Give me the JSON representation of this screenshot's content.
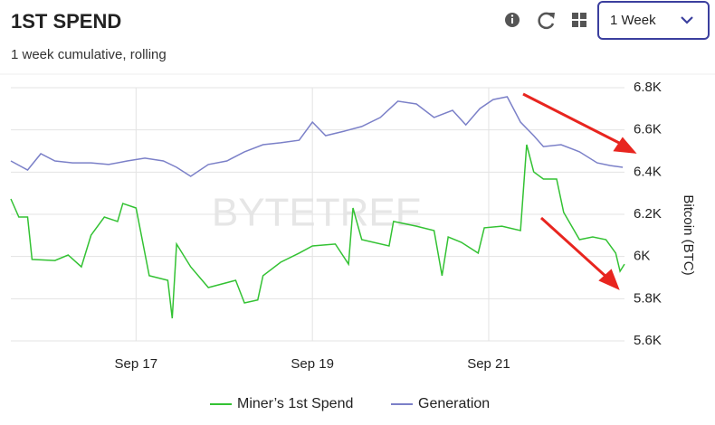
{
  "header": {
    "title": "1ST SPEND",
    "subtitle": "1 week cumulative, rolling",
    "range_select": "1 Week"
  },
  "watermark": "BYTETREE",
  "chart_data": {
    "type": "line",
    "y_label": "Bitcoin (BTC)",
    "xlim": [
      15.58,
      22.54
    ],
    "xticks": [
      {
        "value": 17,
        "label": "Sep 17"
      },
      {
        "value": 19,
        "label": "Sep 19"
      },
      {
        "value": 21,
        "label": "Sep 21"
      }
    ],
    "ylim": [
      5600,
      6800
    ],
    "yticks": [
      {
        "value": 5600,
        "label": "5.6K"
      },
      {
        "value": 5800,
        "label": "5.8K"
      },
      {
        "value": 6000,
        "label": "6K"
      },
      {
        "value": 6200,
        "label": "6.2K"
      },
      {
        "value": 6400,
        "label": "6.4K"
      },
      {
        "value": 6600,
        "label": "6.6K"
      },
      {
        "value": 6800,
        "label": "6.8K"
      }
    ],
    "grid": true,
    "series": [
      {
        "name": "Miner’s 1st Spend",
        "color": "#33c233",
        "x": [
          15.58,
          15.67,
          15.77,
          15.82,
          16.08,
          16.23,
          16.38,
          16.49,
          16.64,
          16.79,
          16.85,
          17.0,
          17.05,
          17.15,
          17.36,
          17.41,
          17.46,
          17.62,
          17.82,
          18.13,
          18.23,
          18.38,
          18.44,
          18.64,
          18.85,
          19.0,
          19.26,
          19.41,
          19.46,
          19.56,
          19.87,
          19.92,
          20.18,
          20.38,
          20.47,
          20.54,
          20.69,
          20.88,
          20.95,
          21.15,
          21.36,
          21.43,
          21.51,
          21.62,
          21.77,
          21.85,
          22.03,
          22.18,
          22.33,
          22.44,
          22.49,
          22.54
        ],
        "values": [
          6273,
          6187,
          6187,
          5986,
          5981,
          6007,
          5951,
          6101,
          6187,
          6166,
          6251,
          6230,
          6123,
          5909,
          5887,
          5707,
          6059,
          5951,
          5853,
          5887,
          5780,
          5794,
          5909,
          5973,
          6016,
          6050,
          6059,
          5964,
          6230,
          6080,
          6050,
          6166,
          6144,
          6123,
          5909,
          6093,
          6067,
          6016,
          6136,
          6144,
          6123,
          6530,
          6401,
          6367,
          6367,
          6209,
          6080,
          6093,
          6080,
          6016,
          5930,
          5964
        ]
      },
      {
        "name": "Generation",
        "color": "#7b80c8",
        "x": [
          15.58,
          15.77,
          15.92,
          16.08,
          16.28,
          16.49,
          16.69,
          16.9,
          17.1,
          17.31,
          17.46,
          17.62,
          17.82,
          18.03,
          18.23,
          18.44,
          18.64,
          18.85,
          19.0,
          19.15,
          19.36,
          19.56,
          19.77,
          19.97,
          20.18,
          20.38,
          20.59,
          20.74,
          20.9,
          21.05,
          21.21,
          21.36,
          21.51,
          21.62,
          21.82,
          22.03,
          22.23,
          22.38,
          22.52
        ],
        "values": [
          6453,
          6410,
          6487,
          6453,
          6444,
          6444,
          6436,
          6453,
          6466,
          6453,
          6423,
          6380,
          6436,
          6453,
          6496,
          6530,
          6539,
          6551,
          6637,
          6573,
          6594,
          6616,
          6659,
          6736,
          6723,
          6659,
          6693,
          6624,
          6701,
          6744,
          6757,
          6637,
          6573,
          6521,
          6530,
          6496,
          6444,
          6431,
          6423
        ]
      }
    ]
  }
}
